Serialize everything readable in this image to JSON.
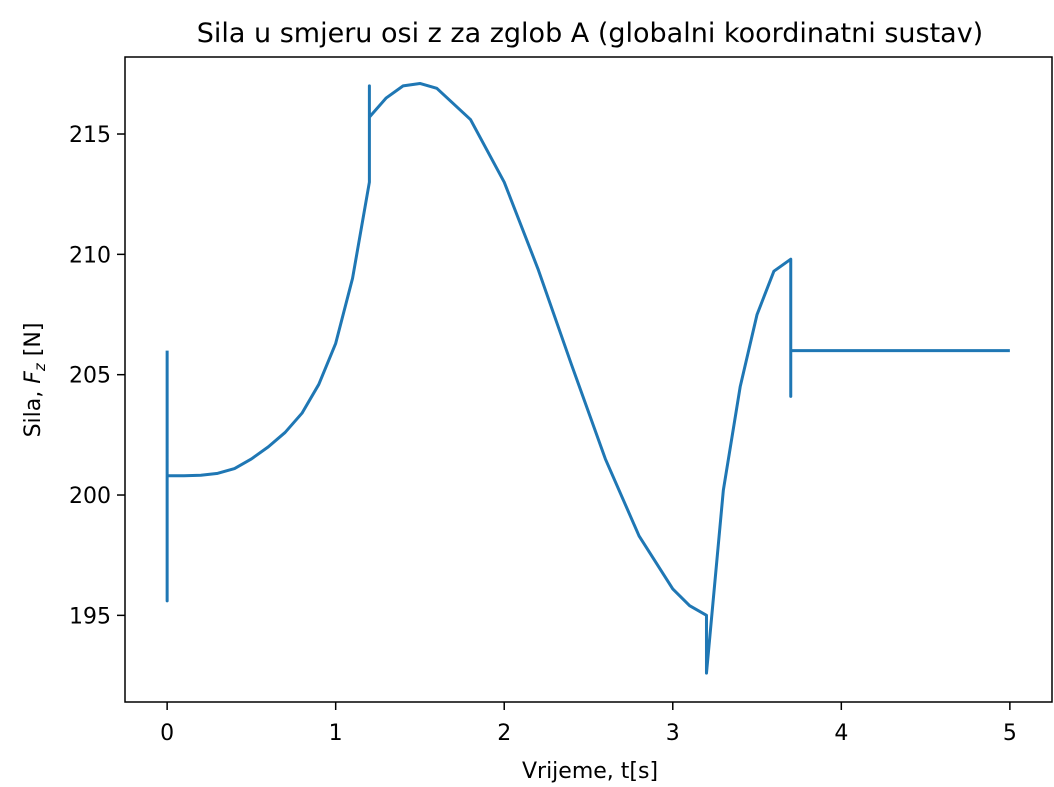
{
  "chart_data": {
    "type": "line",
    "title": "Sila u smjeru osi z za zglob A (globalni koordinatni sustav)",
    "xlabel": "Vrijeme, t[s]",
    "ylabel": {
      "prefix": "Sila, ",
      "symbol": "F",
      "subscript": "z",
      "suffix": " [N]"
    },
    "x": [
      0,
      0,
      0,
      0.1,
      0.2,
      0.3,
      0.4,
      0.5,
      0.6,
      0.7,
      0.8,
      0.9,
      1.0,
      1.1,
      1.2,
      1.2,
      1.2,
      1.3,
      1.4,
      1.5,
      1.6,
      1.8,
      2.0,
      2.2,
      2.4,
      2.6,
      2.8,
      3.0,
      3.1,
      3.2,
      3.2,
      3.3,
      3.4,
      3.5,
      3.6,
      3.7,
      3.7,
      3.7,
      5.0
    ],
    "series": [
      {
        "name": "Fz",
        "color": "#1f77b4",
        "values": [
          206.0,
          195.6,
          200.8,
          200.8,
          200.82,
          200.9,
          201.1,
          201.5,
          202.0,
          202.6,
          203.4,
          204.6,
          206.3,
          209.0,
          213.0,
          217.0,
          215.7,
          216.5,
          217.0,
          217.1,
          216.9,
          215.6,
          213.0,
          209.4,
          205.4,
          201.5,
          198.3,
          196.1,
          195.4,
          195.0,
          192.6,
          200.2,
          204.5,
          207.5,
          209.3,
          209.8,
          204.1,
          206.0,
          206.0
        ]
      }
    ],
    "xlim": [
      -0.25,
      5.25
    ],
    "xticks": [
      0,
      1,
      2,
      3,
      4,
      5
    ],
    "ylim": [
      191.4,
      218.2
    ],
    "yticks": [
      195,
      200,
      205,
      210,
      215
    ],
    "grid": false
  }
}
